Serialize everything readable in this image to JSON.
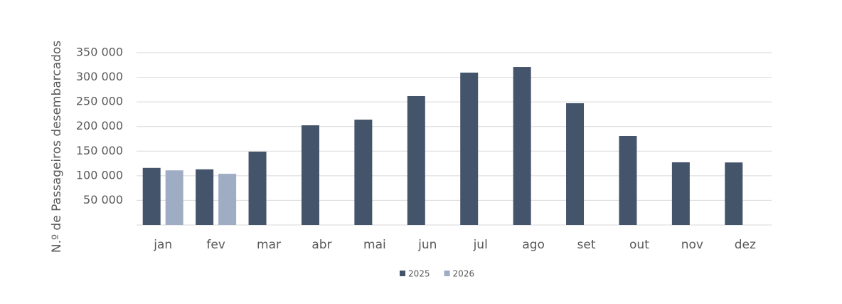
{
  "chart_data": {
    "type": "bar",
    "y_label": "N.º de Passageiros desembarcados",
    "categories": [
      "jan",
      "fev",
      "mar",
      "abr",
      "mai",
      "jun",
      "jul",
      "ago",
      "set",
      "out",
      "nov",
      "dez"
    ],
    "series": [
      {
        "name": "2025",
        "color": "#44546a",
        "values": [
          116000,
          113000,
          149000,
          202500,
          214000,
          261800,
          309500,
          321000,
          247300,
          180800,
          127300,
          127000
        ]
      },
      {
        "name": "2026",
        "color": "#9fadc4",
        "values": [
          111000,
          104000,
          null,
          null,
          null,
          null,
          null,
          null,
          null,
          null,
          null,
          null
        ]
      }
    ],
    "ylim": [
      0,
      350000
    ],
    "yticks": [
      {
        "value": 50000,
        "label": "50 000"
      },
      {
        "value": 100000,
        "label": "100 000"
      },
      {
        "value": 150000,
        "label": "150 000"
      },
      {
        "value": 200000,
        "label": "200 000"
      },
      {
        "value": 250000,
        "label": "250 000"
      },
      {
        "value": 300000,
        "label": "300 000"
      },
      {
        "value": 350000,
        "label": "350 000"
      }
    ],
    "grid": true,
    "legend": "bottom"
  }
}
